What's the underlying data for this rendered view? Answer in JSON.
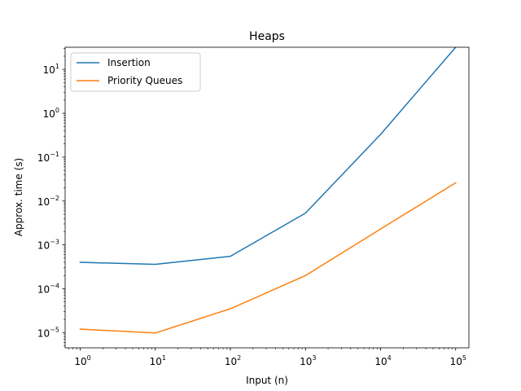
{
  "chart_data": {
    "type": "line",
    "title": "Heaps",
    "xlabel": "Input (n)",
    "ylabel": "Approx. time (s)",
    "xscale": "log",
    "yscale": "log",
    "xlim": [
      0.63,
      150000
    ],
    "ylim": [
      4.5e-06,
      32
    ],
    "grid": false,
    "legend_position": "upper-left",
    "x": [
      1,
      10,
      100,
      1000,
      10000,
      100000
    ],
    "x_ticks": [
      {
        "base": "10",
        "exp": "0",
        "value": 1
      },
      {
        "base": "10",
        "exp": "1",
        "value": 10
      },
      {
        "base": "10",
        "exp": "2",
        "value": 100
      },
      {
        "base": "10",
        "exp": "3",
        "value": 1000
      },
      {
        "base": "10",
        "exp": "4",
        "value": 10000
      },
      {
        "base": "10",
        "exp": "5",
        "value": 100000
      }
    ],
    "y_ticks": [
      {
        "base": "10",
        "exp": "−5",
        "value": 1e-05
      },
      {
        "base": "10",
        "exp": "−4",
        "value": 0.0001
      },
      {
        "base": "10",
        "exp": "−3",
        "value": 0.001
      },
      {
        "base": "10",
        "exp": "−2",
        "value": 0.01
      },
      {
        "base": "10",
        "exp": "−1",
        "value": 0.1
      },
      {
        "base": "10",
        "exp": "0",
        "value": 1
      },
      {
        "base": "10",
        "exp": "1",
        "value": 10
      }
    ],
    "series": [
      {
        "name": "Insertion",
        "color": "#1f77b4",
        "values": [
          0.0004,
          0.00036,
          0.00055,
          0.0053,
          0.33,
          32
        ]
      },
      {
        "name": "Priority Queues",
        "color": "#ff7f0e",
        "values": [
          1.2e-05,
          9.8e-06,
          3.5e-05,
          0.0002,
          0.0023,
          0.026
        ]
      }
    ]
  }
}
